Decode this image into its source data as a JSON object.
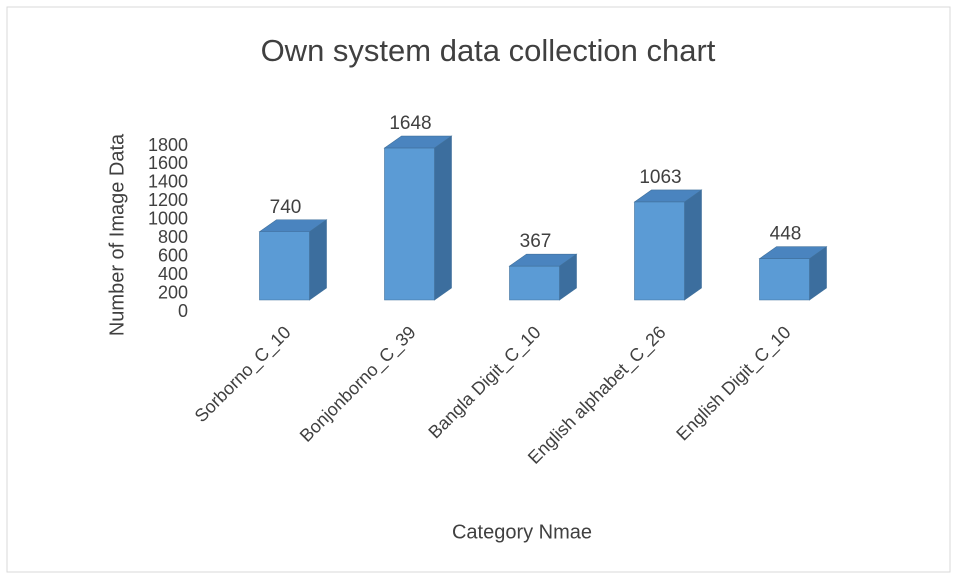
{
  "chart_data": {
    "type": "bar3d",
    "title": "Own system data collection chart",
    "x_label": "Category Nmae",
    "y_label": "Number of Image Data",
    "categories": [
      "Sorborno_C_10",
      "Bonjonborno_C_39",
      "Bangla Digit_C_10",
      "English alphabet_C_26",
      "English Digit_C_10"
    ],
    "values": [
      740,
      1648,
      367,
      1063,
      448
    ],
    "color": "#5b9bd5",
    "ylim": [
      0,
      1800
    ],
    "yticks": [
      0,
      200,
      400,
      600,
      800,
      1000,
      1200,
      1400,
      1600,
      1800
    ],
    "grid": false
  }
}
